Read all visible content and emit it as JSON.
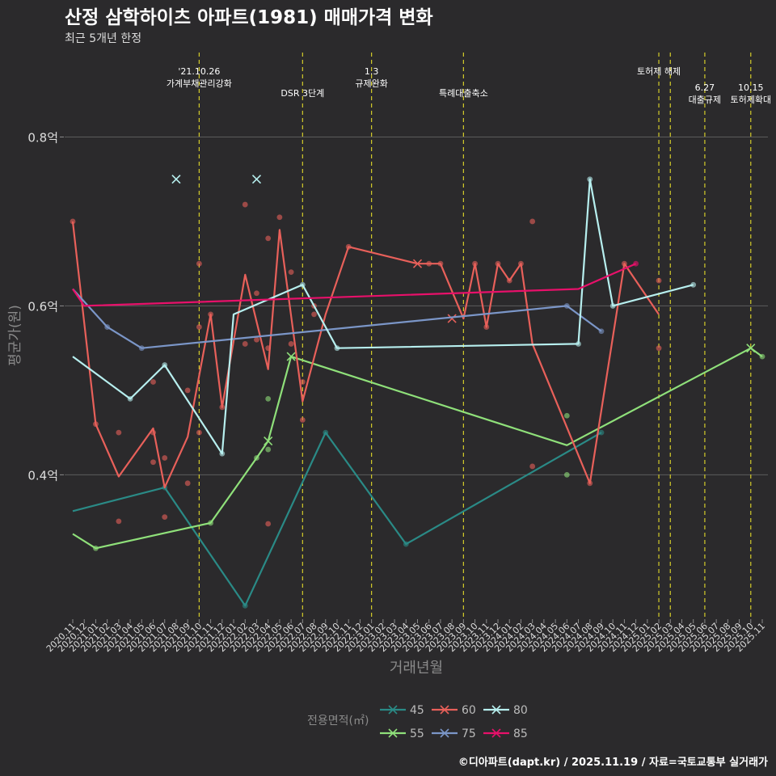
{
  "chart_data": {
    "type": "line",
    "title": "산정 삼학하이츠 아파트(1981) 매매가격 변화",
    "subtitle": "최근 5개년 한정",
    "xlabel": "거래년월",
    "ylabel": "평균가(원)",
    "caption": "©디아파트(dapt.kr) / 2025.11.19 / 자료=국토교통부 실거래가",
    "ylim": [
      0.23,
      0.9
    ],
    "y_ticks": [
      {
        "value": 0.4,
        "label": "0.4억"
      },
      {
        "value": 0.6,
        "label": "0.6억"
      },
      {
        "value": 0.8,
        "label": "0.8억"
      }
    ],
    "x_categories": [
      "2020.11",
      "2020.12",
      "2021.01",
      "2021.02",
      "2021.03",
      "2021.04",
      "2021.05",
      "2021.06",
      "2021.07",
      "2021.08",
      "2021.09",
      "2021.10",
      "2021.11",
      "2021.12",
      "2022.01",
      "2022.02",
      "2022.03",
      "2022.04",
      "2022.05",
      "2022.06",
      "2022.07",
      "2022.08",
      "2022.09",
      "2022.10",
      "2022.11",
      "2022.12",
      "2023.01",
      "2023.02",
      "2023.03",
      "2023.04",
      "2023.05",
      "2023.06",
      "2023.07",
      "2023.08",
      "2023.09",
      "2023.10",
      "2023.11",
      "2023.12",
      "2024.01",
      "2024.02",
      "2024.03",
      "2024.04",
      "2024.05",
      "2024.06",
      "2024.07",
      "2024.08",
      "2024.09",
      "2024.10",
      "2024.11",
      "2024.12",
      "2025.01",
      "2025.02",
      "2025.03",
      "2025.04",
      "2025.05",
      "2025.06",
      "2025.07",
      "2025.08",
      "2025.09",
      "2025.10",
      "2025.11"
    ],
    "x_tick_labels": [
      "2020.11",
      "2020.12",
      "2021.01",
      "2021.02",
      "2021.03",
      "2021.04",
      "2021.05",
      "2021.06",
      "2021.07",
      "2021.08",
      "2021.09",
      "2021.10",
      "2021.11",
      "2021.12",
      "2022.01",
      "2022.02",
      "2022.03",
      "2022.04",
      "2022.05",
      "2022.06",
      "2022.07",
      "2022.08",
      "2022.09",
      "2022.10",
      "2022.11",
      "2022.12",
      "2023.01",
      "2023.02",
      "2023.03",
      "2023.04",
      "2023.05",
      "2023.06",
      "2023.07",
      "2023.08",
      "2023.09",
      "2023.10",
      "2023.11",
      "2023.12",
      "2024.01",
      "2024.02",
      "2024.03",
      "2024.04",
      "2024.05",
      "2024.06",
      "2024.07",
      "2024.08",
      "2024.09",
      "2024.10",
      "2024.11",
      "2024.12",
      "2025.01",
      "2025.02",
      "2025.03",
      "2025.04",
      "2025.05",
      "2025.06",
      "2025.07",
      "2025.08",
      "2025.09",
      "2025.10",
      "2025.11"
    ],
    "annotations": [
      {
        "x": 11.0,
        "lines": [
          "'21.10.26",
          "가계부채관리강화"
        ],
        "row": 0
      },
      {
        "x": 20.0,
        "lines": [
          "DSR 3단계"
        ],
        "row": 1
      },
      {
        "x": 26.0,
        "lines": [
          "1.3",
          "규제완화"
        ],
        "row": 0
      },
      {
        "x": 34.0,
        "lines": [
          "특례대출축소"
        ],
        "row": 1
      },
      {
        "x": 51.0,
        "lines": [
          "토허제 해제"
        ],
        "row": 0
      },
      {
        "x": 52.0,
        "lines": [],
        "row": 0
      },
      {
        "x": 55.0,
        "lines": [
          "6.27",
          "대출규제"
        ],
        "row": 2
      },
      {
        "x": 59.0,
        "lines": [
          "10.15",
          "토허제확대"
        ],
        "row": 2
      }
    ],
    "legend_title": "전용면적(㎡)",
    "series": [
      {
        "name": "45",
        "color": "#2a8a86",
        "line": [
          [
            0,
            0.357
          ],
          [
            8,
            0.385
          ],
          [
            15,
            0.245
          ],
          [
            22,
            0.45
          ],
          [
            29,
            0.318
          ],
          [
            46,
            0.45
          ]
        ],
        "points": [
          [
            8,
            0.385
          ],
          [
            15,
            0.245
          ],
          [
            22,
            0.45
          ],
          [
            29,
            0.318
          ],
          [
            46,
            0.45
          ]
        ],
        "crosses": []
      },
      {
        "name": "55",
        "color": "#8fe07a",
        "line": [
          [
            0,
            0.33
          ],
          [
            2,
            0.313
          ],
          [
            12,
            0.343
          ],
          [
            16,
            0.42
          ],
          [
            17,
            0.44
          ],
          [
            19,
            0.54
          ],
          [
            43,
            0.435
          ],
          [
            59,
            0.55
          ],
          [
            60,
            0.54
          ]
        ],
        "points": [
          [
            2,
            0.313
          ],
          [
            12,
            0.343
          ],
          [
            16,
            0.42
          ],
          [
            17,
            0.43
          ],
          [
            17,
            0.49
          ],
          [
            43,
            0.47
          ],
          [
            43,
            0.4
          ],
          [
            60,
            0.54
          ]
        ],
        "crosses": [
          [
            17,
            0.44
          ],
          [
            19,
            0.54
          ],
          [
            59,
            0.55
          ]
        ]
      },
      {
        "name": "60",
        "color": "#e8605a",
        "line": [
          [
            0,
            0.7
          ],
          [
            2,
            0.46
          ],
          [
            4,
            0.398
          ],
          [
            7,
            0.455
          ],
          [
            8,
            0.385
          ],
          [
            10,
            0.445
          ],
          [
            12,
            0.59
          ],
          [
            13,
            0.48
          ],
          [
            15,
            0.637
          ],
          [
            17,
            0.525
          ],
          [
            18,
            0.69
          ],
          [
            20,
            0.487
          ],
          [
            22,
            0.59
          ],
          [
            24,
            0.67
          ],
          [
            30,
            0.65
          ],
          [
            31,
            0.65
          ],
          [
            32,
            0.65
          ],
          [
            34,
            0.585
          ],
          [
            35,
            0.65
          ],
          [
            36,
            0.575
          ],
          [
            37,
            0.65
          ],
          [
            38,
            0.63
          ],
          [
            39,
            0.65
          ],
          [
            40,
            0.555
          ],
          [
            45,
            0.39
          ],
          [
            48,
            0.65
          ],
          [
            51,
            0.59
          ]
        ],
        "points": [
          [
            0,
            0.7
          ],
          [
            2,
            0.46
          ],
          [
            4,
            0.45
          ],
          [
            4,
            0.345
          ],
          [
            7,
            0.51
          ],
          [
            7,
            0.45
          ],
          [
            7,
            0.415
          ],
          [
            8,
            0.42
          ],
          [
            8,
            0.35
          ],
          [
            10,
            0.5
          ],
          [
            10,
            0.39
          ],
          [
            11,
            0.65
          ],
          [
            11,
            0.575
          ],
          [
            11,
            0.45
          ],
          [
            12,
            0.59
          ],
          [
            13,
            0.48
          ],
          [
            15,
            0.72
          ],
          [
            15,
            0.555
          ],
          [
            16,
            0.615
          ],
          [
            16,
            0.56
          ],
          [
            17,
            0.68
          ],
          [
            17,
            0.55
          ],
          [
            17,
            0.342
          ],
          [
            18,
            0.705
          ],
          [
            19,
            0.64
          ],
          [
            19,
            0.555
          ],
          [
            20,
            0.51
          ],
          [
            20,
            0.465
          ],
          [
            21,
            0.59
          ],
          [
            21,
            0.6
          ],
          [
            24,
            0.67
          ],
          [
            31,
            0.65
          ],
          [
            32,
            0.65
          ],
          [
            35,
            0.65
          ],
          [
            36,
            0.575
          ],
          [
            37,
            0.65
          ],
          [
            38,
            0.63
          ],
          [
            39,
            0.65
          ],
          [
            40,
            0.7
          ],
          [
            40,
            0.41
          ],
          [
            45,
            0.39
          ],
          [
            48,
            0.65
          ],
          [
            51,
            0.63
          ],
          [
            51,
            0.55
          ]
        ],
        "crosses": [
          [
            30,
            0.65
          ],
          [
            33,
            0.585
          ]
        ]
      },
      {
        "name": "75",
        "color": "#7b96c8",
        "line": [
          [
            0,
            0.62
          ],
          [
            3,
            0.575
          ],
          [
            6,
            0.55
          ],
          [
            43,
            0.6
          ],
          [
            46,
            0.57
          ]
        ],
        "points": [
          [
            3,
            0.575
          ],
          [
            6,
            0.55
          ],
          [
            43,
            0.6
          ],
          [
            46,
            0.57
          ]
        ],
        "crosses": []
      },
      {
        "name": "80",
        "color": "#b7efef",
        "line": [
          [
            0,
            0.54
          ],
          [
            5,
            0.49
          ],
          [
            8,
            0.53
          ],
          [
            13,
            0.425
          ],
          [
            14,
            0.59
          ],
          [
            20,
            0.625
          ],
          [
            23,
            0.55
          ],
          [
            44,
            0.555
          ],
          [
            45,
            0.75
          ],
          [
            47,
            0.6
          ],
          [
            54,
            0.625
          ]
        ],
        "points": [
          [
            5,
            0.49
          ],
          [
            8,
            0.53
          ],
          [
            13,
            0.425
          ],
          [
            20,
            0.625
          ],
          [
            23,
            0.55
          ],
          [
            44,
            0.555
          ],
          [
            45,
            0.75
          ],
          [
            47,
            0.6
          ],
          [
            54,
            0.625
          ]
        ],
        "crosses": [
          [
            9,
            0.75
          ],
          [
            16,
            0.75
          ]
        ]
      },
      {
        "name": "85",
        "color": "#e8106a",
        "line": [
          [
            0,
            0.62
          ],
          [
            1,
            0.6
          ],
          [
            44,
            0.62
          ],
          [
            49,
            0.65
          ]
        ],
        "points": [
          [
            49,
            0.65
          ]
        ],
        "crosses": []
      }
    ]
  }
}
